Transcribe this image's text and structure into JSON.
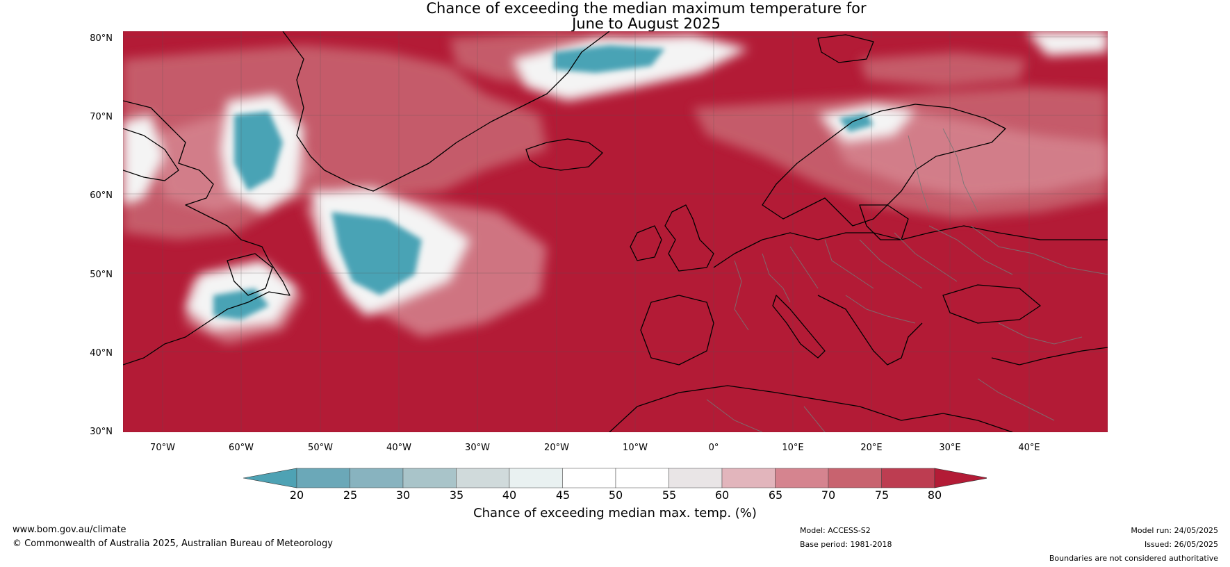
{
  "title": {
    "line1": "Chance of exceeding the median maximum temperature for",
    "line2": "June to August 2025"
  },
  "map": {
    "latitude_labels": [
      "80°N",
      "70°N",
      "60°N",
      "50°N",
      "40°N",
      "30°N"
    ],
    "longitude_labels": [
      "70°W",
      "60°W",
      "50°W",
      "40°W",
      "30°W",
      "20°W",
      "10°W",
      "0°",
      "10°E",
      "20°E",
      "30°E",
      "40°E"
    ],
    "colors": {
      "dominant_warm": "#b31b36",
      "cool": "#4aa3b5",
      "coastline": "#000000",
      "borders": "#777777",
      "gridlines": "#555555"
    }
  },
  "colorbar": {
    "tick_labels": [
      "20",
      "25",
      "30",
      "35",
      "40",
      "45",
      "50",
      "55",
      "60",
      "65",
      "70",
      "75",
      "80"
    ],
    "title": "Chance of exceeding median max. temp. (%)",
    "colors": [
      "#4ea2b4",
      "#6ba8b8",
      "#88b3bf",
      "#a9c4c9",
      "#d0dadb",
      "#e9f1f1",
      "#ffffff",
      "#ffffff",
      "#e9e5e6",
      "#e2b5bc",
      "#d5848f",
      "#c8636f",
      "#bd3d51",
      "#b31b36"
    ]
  },
  "footer": {
    "website": "www.bom.gov.au/climate",
    "copyright": "© Commonwealth of Australia 2025, Australian Bureau of Meteorology",
    "model": "Model: ACCESS-S2",
    "base_period": "Base period: 1981-2018",
    "model_run": "Model run: 24/05/2025",
    "issued": "Issued: 26/05/2025",
    "disclaimer": "Boundaries are not considered authoritative"
  }
}
